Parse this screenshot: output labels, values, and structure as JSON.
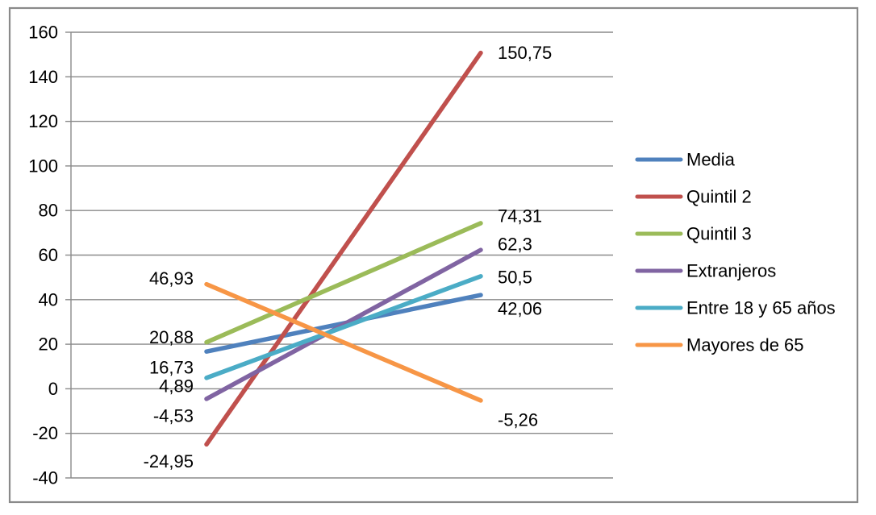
{
  "chart_data": {
    "type": "line",
    "title": "",
    "categories": [
      "",
      ""
    ],
    "series": [
      {
        "name": "Media",
        "color": "#4F81BD",
        "values": [
          16.73,
          42.06
        ],
        "labels": [
          "16,73",
          "42,06"
        ]
      },
      {
        "name": "Quintil 2",
        "color": "#C0504D",
        "values": [
          -24.95,
          150.75
        ],
        "labels": [
          "-24,95",
          "150,75"
        ]
      },
      {
        "name": "Quintil 3",
        "color": "#9BBB59",
        "values": [
          20.88,
          74.31
        ],
        "labels": [
          "20,88",
          "74,31"
        ]
      },
      {
        "name": "Extranjeros",
        "color": "#8064A2",
        "values": [
          -4.53,
          62.3
        ],
        "labels": [
          "-4,53",
          "62,3"
        ]
      },
      {
        "name": "Entre 18 y 65 años",
        "color": "#4BACC6",
        "values": [
          4.89,
          50.5
        ],
        "labels": [
          "4,89",
          "50,5"
        ]
      },
      {
        "name": "Mayores de 65",
        "color": "#F79646",
        "values": [
          46.93,
          -5.26
        ],
        "labels": [
          "46,93",
          "-5,26"
        ]
      }
    ],
    "y_axis": {
      "min": -40,
      "max": 160,
      "step": 20,
      "tick_labels": [
        "160",
        "140",
        "120",
        "100",
        "80",
        "60",
        "40",
        "20",
        "0",
        "-20",
        "-40"
      ]
    },
    "x_axis": {
      "tick_labels": []
    },
    "grid": true,
    "legend": {
      "position": "right",
      "entries": [
        "Media",
        "Quintil 2",
        "Quintil 3",
        "Extranjeros",
        "Entre 18 y 65 años",
        "Mayores de 65"
      ]
    },
    "colors": {
      "gridline": "#8A8A8A",
      "axis": "#8A8A8A",
      "chart_border": "#8A8A8A",
      "text": "#000000",
      "background": "#FFFFFF"
    }
  }
}
